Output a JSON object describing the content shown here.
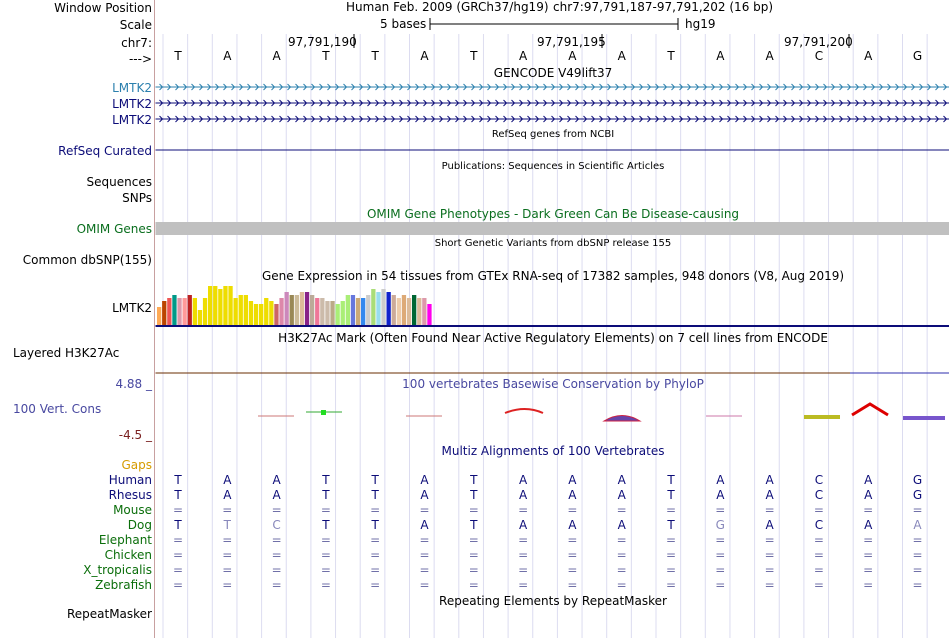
{
  "header": {
    "window_position_label": "Window Position",
    "scale_label": "Scale",
    "chrom_label": "chr7:",
    "strand_label": "--->",
    "assembly_text": "Human Feb. 2009 (GRCh37/hg19)",
    "position_text": "chr7:97,791,187-97,791,202 (16 bp)",
    "scale_text": "5 bases",
    "scale_db": "hg19",
    "ticks": [
      "97,791,190",
      "97,791,195",
      "97,791,200"
    ]
  },
  "bases": [
    "T",
    "A",
    "A",
    "T",
    "T",
    "A",
    "T",
    "A",
    "A",
    "A",
    "T",
    "A",
    "A",
    "C",
    "A",
    "G"
  ],
  "gencode": {
    "title": "GENCODE V49lift37",
    "items": [
      "LMTK2",
      "LMTK2",
      "LMTK2"
    ]
  },
  "refseq": {
    "title": "RefSeq genes from NCBI",
    "label": "RefSeq Curated"
  },
  "publications": {
    "title": "Publications: Sequences in Scientific Articles",
    "labels": [
      "Sequences",
      "SNPs"
    ]
  },
  "omim": {
    "title": "OMIM Gene Phenotypes - Dark Green Can Be Disease-causing",
    "label": "OMIM Genes"
  },
  "dbsnp": {
    "title": "Short Genetic Variants from dbSNP release 155",
    "label": "Common dbSNP(155)"
  },
  "gtex": {
    "title": "Gene Expression in 54 tissues from GTEx RNA-seq of 17382 samples, 948 donors (V8, Aug 2019)",
    "label": "LMTK2",
    "values": [
      6,
      8,
      9,
      10,
      9,
      9,
      10,
      9,
      5,
      9,
      13,
      13,
      12,
      13,
      13,
      9,
      10,
      10,
      8,
      7,
      7,
      9,
      8,
      7,
      9,
      11,
      10,
      10,
      11,
      11,
      10,
      9,
      9,
      8,
      8,
      7,
      8,
      10,
      10,
      9,
      9,
      10,
      12,
      11,
      12,
      11,
      10,
      9,
      10,
      9,
      10,
      9,
      9,
      7
    ],
    "colors": [
      "#FFAA55",
      "#BB4400",
      "#EE5555",
      "#009988",
      "#DD99AA",
      "#FF9999",
      "#BB2222",
      "#EEDD00",
      "#EEDD00",
      "#EEDD00",
      "#EEDD00",
      "#EEDD00",
      "#EEDD00",
      "#EEDD00",
      "#EEDD00",
      "#EEDD00",
      "#EEDD00",
      "#EEDD00",
      "#EEDD00",
      "#EEDD00",
      "#EEDD00",
      "#EEDD00",
      "#EEDD00",
      "#CC6666",
      "#DD88AA",
      "#CC88BB",
      "#998855",
      "#CCBB99",
      "#DDBB99",
      "#882288",
      "#BBAA99",
      "#EE7799",
      "#CCBBAA",
      "#CCBBAA",
      "#BBAA88",
      "#AAEE77",
      "#AAEE77",
      "#AAEE77",
      "#6677DD",
      "#CCAA77",
      "#3388EE",
      "#CCCCCC",
      "#AADD77",
      "#99DDEE",
      "#CCCCCC",
      "#1122CC",
      "#CCAA99",
      "#EECCAA",
      "#DDAA77",
      "#DDBB99",
      "#006633",
      "#DDBB99",
      "#DD99AA",
      "#FF00EE"
    ]
  },
  "h3k27ac": {
    "title": "H3K27Ac Mark (Often Found Near Active Regulatory Elements) on 7 cell lines from ENCODE",
    "label": "Layered H3K27Ac"
  },
  "phylop": {
    "title": "100 vertebrates Basewise Conservation by PhyloP",
    "label": "100 Vert. Cons",
    "ymax": "4.88 _",
    "ymin": "-4.5 _"
  },
  "multiz": {
    "title": "Multiz Alignments of 100 Vertebrates",
    "gaps_label": "Gaps",
    "species": [
      {
        "name": "Human",
        "seq": [
          "T",
          "A",
          "A",
          "T",
          "T",
          "A",
          "T",
          "A",
          "A",
          "A",
          "T",
          "A",
          "A",
          "C",
          "A",
          "G"
        ]
      },
      {
        "name": "Rhesus",
        "seq": [
          "T",
          "A",
          "A",
          "T",
          "T",
          "A",
          "T",
          "A",
          "A",
          "A",
          "T",
          "A",
          "A",
          "C",
          "A",
          "G"
        ]
      },
      {
        "name": "Mouse",
        "seq": [
          "=",
          "=",
          "=",
          "=",
          "=",
          "=",
          "=",
          "=",
          "=",
          "=",
          "=",
          "=",
          "=",
          "=",
          "=",
          "="
        ]
      },
      {
        "name": "Dog",
        "seq": [
          "T",
          "T",
          "C",
          "T",
          "T",
          "A",
          "T",
          "A",
          "A",
          "A",
          "T",
          "G",
          "A",
          "C",
          "A",
          "A"
        ]
      },
      {
        "name": "Elephant",
        "seq": [
          "=",
          "=",
          "=",
          "=",
          "=",
          "=",
          "=",
          "=",
          "=",
          "=",
          "=",
          "=",
          "=",
          "=",
          "=",
          "="
        ]
      },
      {
        "name": "Chicken",
        "seq": [
          "=",
          "=",
          "=",
          "=",
          "=",
          "=",
          "=",
          "=",
          "=",
          "=",
          "=",
          "=",
          "=",
          "=",
          "=",
          "="
        ]
      },
      {
        "name": "X_tropicalis",
        "seq": [
          "=",
          "=",
          "=",
          "=",
          "=",
          "=",
          "=",
          "=",
          "=",
          "=",
          "=",
          "=",
          "=",
          "=",
          "=",
          "="
        ]
      },
      {
        "name": "Zebrafish",
        "seq": [
          "=",
          "=",
          "=",
          "=",
          "=",
          "=",
          "=",
          "=",
          "=",
          "=",
          "=",
          "=",
          "=",
          "=",
          "=",
          "="
        ]
      }
    ]
  },
  "repeatmasker": {
    "title": "Repeating Elements by RepeatMasker",
    "label": "RepeatMasker"
  },
  "colors": {
    "gencode_blue": "#2C80AE",
    "dark_navy": "#0C0C78",
    "omim_green": "#0A6E1E",
    "phylop_blue": "#4848A0",
    "phylop_red": "#7A2020",
    "gaps_orange": "#D69B00",
    "species_green": "#0B6E0B",
    "omim_gray": "#C0C0C0"
  }
}
